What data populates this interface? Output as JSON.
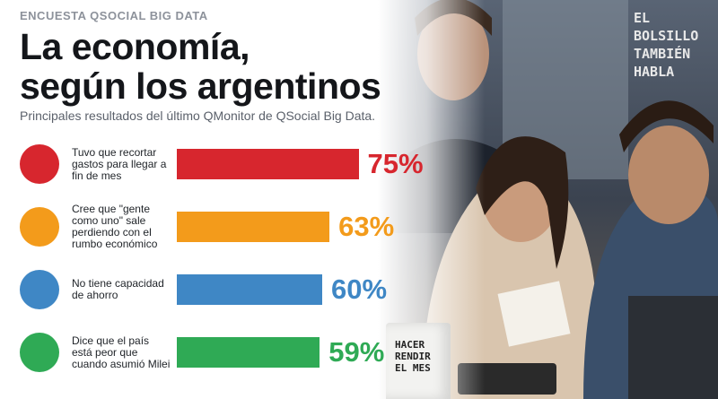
{
  "kicker": "ENCUESTA QSOCIAL BIG DATA",
  "right_caption": "EL BOLSILLO TAMBIÉN HABLA",
  "mug_text": "HACER RENDIR EL MES",
  "chart_data": {
    "type": "bar",
    "orientation": "horizontal",
    "title": "La economía,\nsegún los argentinos",
    "subtitle": "Principales resultados del último QMonitor de QSocial Big Data.",
    "categories": [
      "Tuvo que recortar gastos para llegar a fin de mes",
      "Cree que \"gente como uno\" sale perdiendo con el rumbo económico",
      "No tiene capacidad de ahorro",
      "Dice que el país está peor que cuando asumió Milei"
    ],
    "values": [
      75,
      63,
      60,
      59
    ],
    "value_labels": [
      "75%",
      "63%",
      "60%",
      "59%"
    ],
    "colors": [
      "#d7262e",
      "#f39b1b",
      "#3f87c5",
      "#2faa55"
    ],
    "xlim": [
      0,
      100
    ]
  }
}
